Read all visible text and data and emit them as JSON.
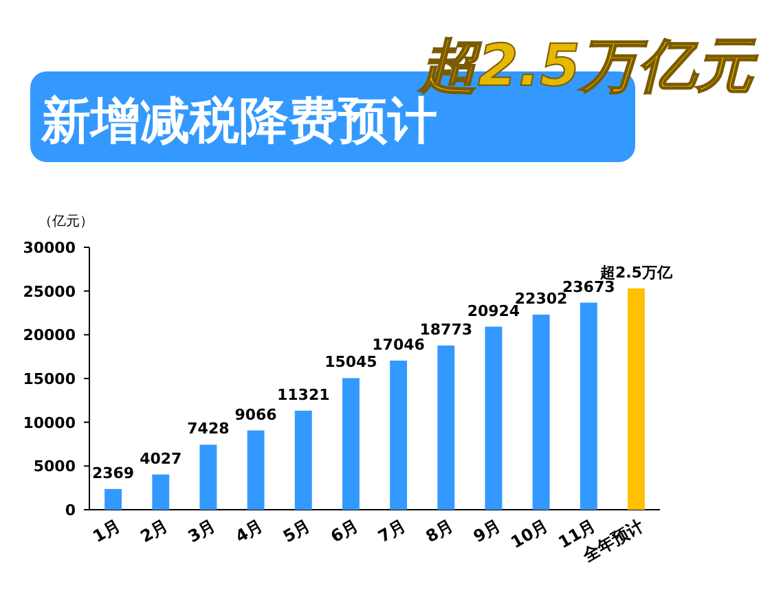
{
  "chart_data": {
    "type": "bar",
    "title": "新增减税降费预计",
    "ylabel": "（亿元）",
    "annotations": [
      "超2.5万亿元"
    ],
    "categories": [
      "1月",
      "2月",
      "3月",
      "4月",
      "5月",
      "6月",
      "7月",
      "8月",
      "9月",
      "10月",
      "11月",
      "全年预计"
    ],
    "values": [
      2369,
      4027,
      7428,
      9066,
      11321,
      15045,
      17046,
      18773,
      20924,
      22302,
      23673,
      25300
    ],
    "colors": [
      "#3399ff",
      "#3399ff",
      "#3399ff",
      "#3399ff",
      "#3399ff",
      "#3399ff",
      "#3399ff",
      "#3399ff",
      "#3399ff",
      "#3399ff",
      "#3399ff",
      "#ffc000"
    ],
    "value_labels": [
      "2369",
      "4027",
      "7428",
      "9066",
      "11321",
      "15045",
      "17046",
      "18773",
      "20924",
      "22302",
      "23673",
      "超2.5万亿"
    ],
    "ylim": [
      0,
      30000
    ],
    "yticks": [
      0,
      5000,
      10000,
      15000,
      20000,
      25000,
      30000
    ]
  }
}
